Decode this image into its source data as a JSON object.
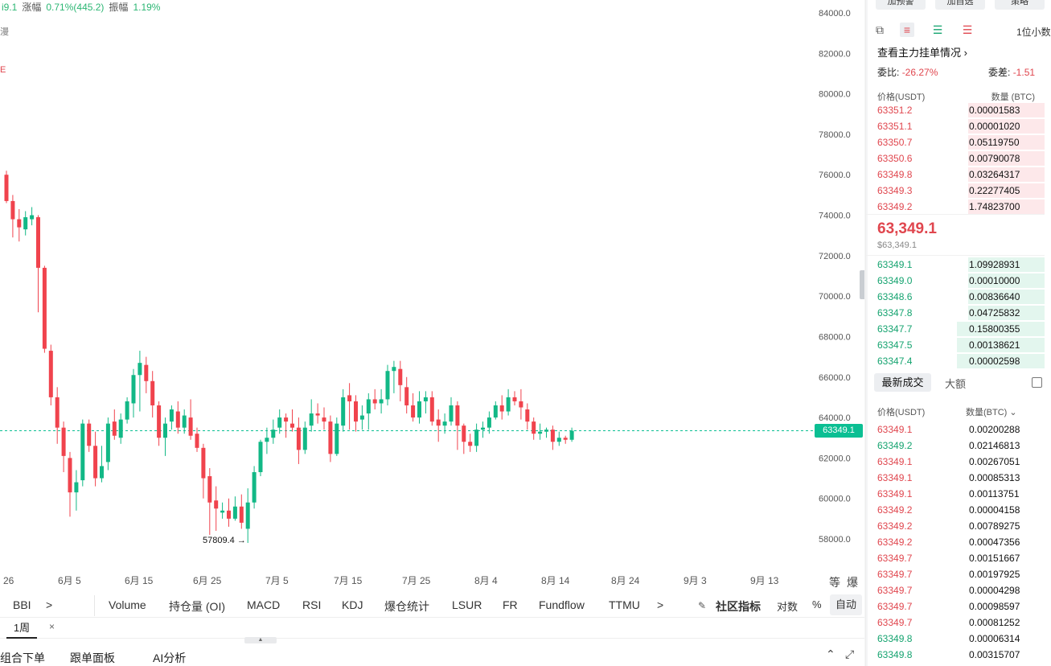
{
  "stats": {
    "partial_value": "i9.1",
    "change_label": "涨幅",
    "change_value": "0.71%(445.2)",
    "amplitude_label": "振幅",
    "amplitude_value": "1.19%"
  },
  "left_marks": [
    "漫",
    "E"
  ],
  "chart_data": {
    "type": "candlestick",
    "title": "",
    "y_ticks": [
      "84000.0",
      "82000.0",
      "80000.0",
      "78000.0",
      "76000.0",
      "74000.0",
      "72000.0",
      "70000.0",
      "68000.0",
      "66000.0",
      "64000.0",
      "62000.0",
      "60000.0",
      "58000.0"
    ],
    "ylim": [
      57000,
      84800
    ],
    "x_ticks": [
      "26",
      "6月 5",
      "6月 15",
      "6月 25",
      "7月 5",
      "7月 15",
      "7月 25",
      "8月 4",
      "8月 14",
      "8月 24",
      "9月 3",
      "9月 13"
    ],
    "last_price": "63349.1",
    "low_annotation": "57809.4 →",
    "up_color": "#12b886",
    "down_color": "#f0434d",
    "candles": [
      [
        76000,
        74700,
        76200,
        74600
      ],
      [
        74700,
        73800,
        75000,
        72900
      ],
      [
        73800,
        73400,
        74300,
        72700
      ],
      [
        73300,
        73900,
        74200,
        73000
      ],
      [
        73800,
        74000,
        74400,
        73500
      ],
      [
        73900,
        71400,
        74000,
        69200
      ],
      [
        71400,
        67400,
        71500,
        67200
      ],
      [
        67300,
        65000,
        67600,
        64600
      ],
      [
        65000,
        63500,
        65500,
        62700
      ],
      [
        63500,
        62100,
        63800,
        61300
      ],
      [
        62000,
        60300,
        62300,
        59100
      ],
      [
        60300,
        60800,
        61400,
        59400
      ],
      [
        60900,
        63700,
        63900,
        60600
      ],
      [
        63700,
        62600,
        63900,
        62300
      ],
      [
        62600,
        61000,
        63300,
        60600
      ],
      [
        61000,
        61600,
        62600,
        60800
      ],
      [
        61800,
        63700,
        64000,
        61400
      ],
      [
        63800,
        63100,
        64400,
        62900
      ],
      [
        63000,
        63900,
        64200,
        62700
      ],
      [
        63900,
        64800,
        65000,
        63700
      ],
      [
        64700,
        66100,
        66400,
        64000
      ],
      [
        66100,
        66700,
        67300,
        64300
      ],
      [
        66600,
        65800,
        67000,
        65200
      ],
      [
        65800,
        64600,
        66300,
        64000
      ],
      [
        64600,
        63000,
        64800,
        62600
      ],
      [
        63000,
        63700,
        64000,
        62100
      ],
      [
        63800,
        64400,
        64600,
        63400
      ],
      [
        64300,
        63500,
        64800,
        63200
      ],
      [
        63500,
        64100,
        64400,
        63200
      ],
      [
        64000,
        63100,
        64900,
        62900
      ],
      [
        63200,
        62500,
        63500,
        62300
      ],
      [
        62500,
        61000,
        62700,
        60000
      ],
      [
        61100,
        59800,
        61500,
        58200
      ],
      [
        59900,
        59500,
        60600,
        58400
      ],
      [
        59300,
        59400,
        59800,
        59000
      ],
      [
        59400,
        59000,
        60000,
        58600
      ],
      [
        59000,
        59600,
        60100,
        58900
      ],
      [
        59600,
        58800,
        60200,
        58500
      ],
      [
        58500,
        59800,
        60500,
        57800
      ],
      [
        59800,
        61300,
        61600,
        59500
      ],
      [
        61300,
        62800,
        62900,
        61100
      ],
      [
        62800,
        63000,
        63500,
        62200
      ],
      [
        63000,
        63400,
        63900,
        62700
      ],
      [
        63500,
        64000,
        64400,
        63200
      ],
      [
        64000,
        63800,
        64200,
        63000
      ],
      [
        63700,
        63500,
        64400,
        63300
      ],
      [
        63500,
        62400,
        64000,
        61700
      ],
      [
        62400,
        63500,
        63800,
        62200
      ],
      [
        63600,
        64200,
        64900,
        63300
      ],
      [
        64200,
        64100,
        64700,
        63700
      ],
      [
        64000,
        63800,
        64500,
        63400
      ],
      [
        63800,
        62200,
        64100,
        61800
      ],
      [
        62200,
        63700,
        64000,
        62100
      ],
      [
        63600,
        65000,
        65400,
        63300
      ],
      [
        65100,
        64800,
        65700,
        63400
      ],
      [
        64800,
        63800,
        65100,
        63300
      ],
      [
        63900,
        64100,
        64600,
        63400
      ],
      [
        64200,
        64900,
        65200,
        63400
      ],
      [
        64900,
        64700,
        65400,
        64400
      ],
      [
        64700,
        64900,
        65400,
        64200
      ],
      [
        64900,
        66300,
        66600,
        64600
      ],
      [
        66300,
        66500,
        66800,
        65200
      ],
      [
        66400,
        65600,
        66800,
        64800
      ],
      [
        65500,
        64600,
        66000,
        64200
      ],
      [
        64600,
        64000,
        65200,
        63800
      ],
      [
        64000,
        64800,
        65300,
        63700
      ],
      [
        64800,
        65000,
        65300,
        64200
      ],
      [
        65000,
        63800,
        65300,
        63600
      ],
      [
        63900,
        63600,
        64400,
        62800
      ],
      [
        63600,
        63800,
        64200,
        63200
      ],
      [
        63800,
        64600,
        65000,
        63600
      ],
      [
        64600,
        63600,
        64800,
        62400
      ],
      [
        63600,
        62800,
        63700,
        62200
      ],
      [
        62800,
        62600,
        63200,
        62300
      ],
      [
        62600,
        63400,
        63700,
        62300
      ],
      [
        63400,
        63500,
        63800,
        63000
      ],
      [
        63500,
        64000,
        64300,
        63200
      ],
      [
        64000,
        64600,
        64800,
        63900
      ],
      [
        64600,
        64300,
        65100,
        63900
      ],
      [
        64300,
        65000,
        65400,
        64100
      ],
      [
        65000,
        64800,
        65300,
        64600
      ],
      [
        64800,
        64500,
        65400,
        63900
      ],
      [
        64400,
        63800,
        64700,
        63400
      ],
      [
        63800,
        63200,
        64000,
        62900
      ],
      [
        63200,
        63300,
        63700,
        62900
      ],
      [
        63300,
        63400,
        63500,
        63000
      ],
      [
        63400,
        62800,
        63600,
        62400
      ],
      [
        62800,
        63000,
        63300,
        62600
      ],
      [
        63000,
        62900,
        63100,
        62700
      ],
      [
        62900,
        63349,
        63500,
        62800
      ]
    ]
  },
  "indicators": {
    "bbi": "BBI",
    "more": ">",
    "volume": "Volume",
    "oi": "持仓量 (OI)",
    "macd": "MACD",
    "rsi": "RSI",
    "kdj": "KDJ",
    "liq": "爆仓统计",
    "lsur": "LSUR",
    "fr": "FR",
    "fundflow": "Fundflow",
    "ttmu": "TTMU",
    "more2": ">",
    "community": "社区指标",
    "log": "对数",
    "percent": "%",
    "auto": "自动"
  },
  "period": {
    "label": "1周",
    "close": "×"
  },
  "bottom_tabs": [
    "组合下单",
    "跟单面板",
    "AI分析"
  ],
  "panel": {
    "top_buttons": [
      "加预警",
      "加自选",
      "策略"
    ],
    "decimals": "1位小数",
    "main_orders": "查看主力挂单情况",
    "ratio_label": "委比:",
    "ratio_value": "-26.27%",
    "diff_label": "委差:",
    "diff_value": "-1.51",
    "header": {
      "price": "价格(USDT)",
      "qty": "数量 (BTC)"
    },
    "asks": [
      {
        "price": "63351.2",
        "qty": "0.00001583",
        "depth": 0.43
      },
      {
        "price": "63351.1",
        "qty": "0.00001020",
        "depth": 0.43
      },
      {
        "price": "63350.7",
        "qty": "0.05119750",
        "depth": 0.43
      },
      {
        "price": "63350.6",
        "qty": "0.00790078",
        "depth": 0.43
      },
      {
        "price": "63349.8",
        "qty": "0.03264317",
        "depth": 0.43
      },
      {
        "price": "63349.3",
        "qty": "0.22277405",
        "depth": 0.43
      },
      {
        "price": "63349.2",
        "qty": "1.74823700",
        "depth": 0.43
      }
    ],
    "last_price": "63,349.1",
    "last_usd": "$63,349.1",
    "bids": [
      {
        "price": "63349.1",
        "qty": "1.09928931",
        "depth": 0.43
      },
      {
        "price": "63349.0",
        "qty": "0.00010000",
        "depth": 0.43
      },
      {
        "price": "63348.6",
        "qty": "0.00836640",
        "depth": 0.43
      },
      {
        "price": "63347.8",
        "qty": "0.04725832",
        "depth": 0.43
      },
      {
        "price": "63347.7",
        "qty": "0.15800355",
        "depth": 0.49
      },
      {
        "price": "63347.5",
        "qty": "0.00138621",
        "depth": 0.49
      },
      {
        "price": "63347.4",
        "qty": "0.00002598",
        "depth": 0.49
      }
    ],
    "trade_tabs": {
      "latest": "最新成交",
      "big": "大额"
    },
    "trade_header": {
      "price": "价格(USDT)",
      "qty": "数量(BTC)"
    },
    "trades": [
      {
        "price": "63349.1",
        "qty": "0.00200288",
        "side": "sell"
      },
      {
        "price": "63349.2",
        "qty": "0.02146813",
        "side": "buy"
      },
      {
        "price": "63349.1",
        "qty": "0.00267051",
        "side": "sell"
      },
      {
        "price": "63349.1",
        "qty": "0.00085313",
        "side": "sell"
      },
      {
        "price": "63349.1",
        "qty": "0.00113751",
        "side": "sell"
      },
      {
        "price": "63349.2",
        "qty": "0.00004158",
        "side": "sell"
      },
      {
        "price": "63349.2",
        "qty": "0.00789275",
        "side": "sell"
      },
      {
        "price": "63349.2",
        "qty": "0.00047356",
        "side": "sell"
      },
      {
        "price": "63349.7",
        "qty": "0.00151667",
        "side": "sell"
      },
      {
        "price": "63349.7",
        "qty": "0.00197925",
        "side": "sell"
      },
      {
        "price": "63349.7",
        "qty": "0.00004298",
        "side": "sell"
      },
      {
        "price": "63349.7",
        "qty": "0.00098597",
        "side": "sell"
      },
      {
        "price": "63349.7",
        "qty": "0.00081252",
        "side": "sell"
      },
      {
        "price": "63349.8",
        "qty": "0.00006314",
        "side": "buy"
      },
      {
        "price": "63349.8",
        "qty": "0.00315707",
        "side": "buy"
      }
    ]
  }
}
